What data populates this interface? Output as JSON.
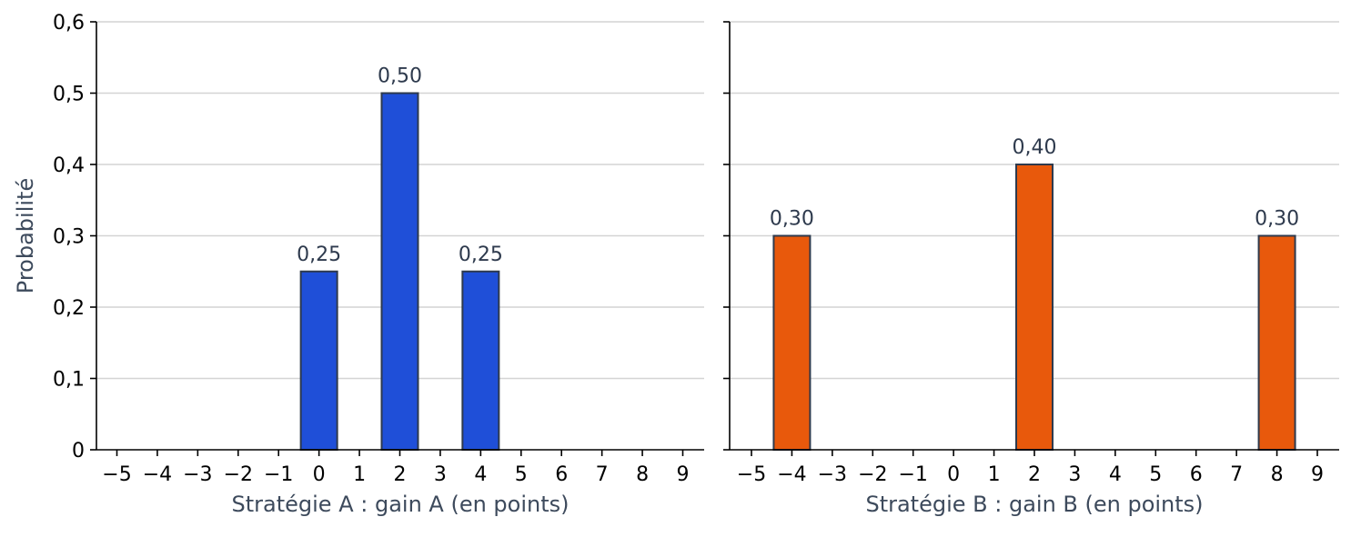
{
  "chart_data": [
    {
      "type": "bar",
      "xlabel": "Stratégie A : gain A (en points)",
      "ylabel": "Probabilité",
      "x_ticks": [
        "−5",
        "−4",
        "−3",
        "−2",
        "−1",
        "0",
        "1",
        "2",
        "3",
        "4",
        "5",
        "6",
        "7",
        "8",
        "9"
      ],
      "xlim": [
        -5,
        9
      ],
      "y_ticks": [
        "0",
        "0,1",
        "0,2",
        "0,3",
        "0,4",
        "0,5",
        "0,6"
      ],
      "ylim": [
        0,
        0.6
      ],
      "grid": "horizontal",
      "color": "#1f4fd8",
      "bars": [
        {
          "x": 0,
          "value": 0.25,
          "label": "0,25"
        },
        {
          "x": 2,
          "value": 0.5,
          "label": "0,50"
        },
        {
          "x": 4,
          "value": 0.25,
          "label": "0,25"
        }
      ]
    },
    {
      "type": "bar",
      "xlabel": "Stratégie B : gain B (en points)",
      "ylabel": "",
      "x_ticks": [
        "−5",
        "−4",
        "−3",
        "−2",
        "−1",
        "0",
        "1",
        "2",
        "3",
        "4",
        "5",
        "6",
        "7",
        "8",
        "9"
      ],
      "xlim": [
        -5,
        9
      ],
      "y_ticks": [],
      "ylim": [
        0,
        0.6
      ],
      "grid": "horizontal",
      "color": "#e8590c",
      "bars": [
        {
          "x": -4,
          "value": 0.3,
          "label": "0,30"
        },
        {
          "x": 2,
          "value": 0.4,
          "label": "0,40"
        },
        {
          "x": 8,
          "value": 0.3,
          "label": "0,30"
        }
      ]
    }
  ]
}
